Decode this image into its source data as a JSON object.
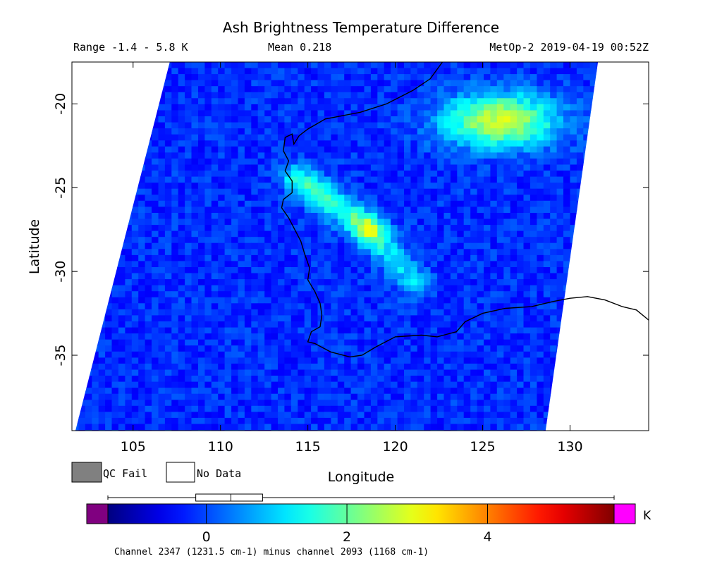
{
  "chart_data": {
    "type": "heatmap",
    "title": "Ash Brightness Temperature Difference",
    "range_text": "Range -1.4 - 5.8 K",
    "mean_text": "Mean 0.218",
    "satellite_text": "MetOp-2 2019-04-19 00:52Z",
    "xlabel": "Longitude",
    "ylabel": "Latitude",
    "xlim": [
      101.5,
      134.5
    ],
    "ylim": [
      -39.5,
      -17.5
    ],
    "x_ticks": [
      105,
      110,
      115,
      120,
      125,
      130
    ],
    "x_tick_labels": [
      "105",
      "110",
      "115",
      "120",
      "125",
      "130"
    ],
    "y_ticks": [
      -20,
      -25,
      -30,
      -35
    ],
    "y_tick_labels": [
      "-20",
      "-25",
      "-30",
      "-35"
    ],
    "legend": {
      "qc_fail_label": "QC Fail",
      "no_data_label": "No Data",
      "qc_fail_color": "#808080",
      "no_data_color": "#ffffff"
    },
    "colorbar": {
      "min": -1.4,
      "max": 5.8,
      "ticks": [
        0,
        2,
        4
      ],
      "tick_labels": [
        "0",
        "2",
        "4"
      ],
      "unit": "K",
      "under_color": "#800080",
      "over_color": "#ff00ff",
      "colormap": "jet",
      "caption": "Channel 2347 (1231.5 cm-1) minus channel 2093 (1168 cm-1)",
      "box_plot": {
        "whisker_low": -1.4,
        "q1": -0.15,
        "median": 0.35,
        "q3": 0.8,
        "whisker_high": 5.8
      }
    },
    "swath": {
      "top_left": [
        107.1,
        -17.5
      ],
      "bottom_left": [
        101.7,
        -39.5
      ],
      "top_right": [
        131.6,
        -17.5
      ],
      "bottom_right": [
        128.6,
        -39.5
      ]
    },
    "features": [
      {
        "name": "ash-plume-northeast",
        "center": [
          126.0,
          -21.0
        ],
        "peak_value": 3.0
      },
      {
        "name": "ash-band-west",
        "start": [
          114.5,
          -24.5
        ],
        "end": [
          118.5,
          -27.5
        ],
        "peak_value": 1.9
      },
      {
        "name": "ash-trail-south",
        "start": [
          118.5,
          -27.5
        ],
        "end": [
          121.0,
          -30.5
        ],
        "peak_value": 1.3
      }
    ],
    "coastline": [
      [
        122.7,
        -17.5
      ],
      [
        122.0,
        -18.5
      ],
      [
        121.0,
        -19.2
      ],
      [
        119.5,
        -20.0
      ],
      [
        118.0,
        -20.5
      ],
      [
        117.0,
        -20.7
      ],
      [
        116.0,
        -20.9
      ],
      [
        115.0,
        -21.5
      ],
      [
        114.5,
        -21.9
      ],
      [
        114.2,
        -22.4
      ],
      [
        114.1,
        -21.8
      ],
      [
        113.7,
        -22.0
      ],
      [
        113.6,
        -22.8
      ],
      [
        113.9,
        -23.4
      ],
      [
        113.7,
        -24.0
      ],
      [
        114.1,
        -24.6
      ],
      [
        114.1,
        -25.3
      ],
      [
        113.6,
        -25.7
      ],
      [
        113.5,
        -26.2
      ],
      [
        113.9,
        -26.8
      ],
      [
        114.2,
        -27.4
      ],
      [
        114.6,
        -28.2
      ],
      [
        114.8,
        -28.9
      ],
      [
        115.1,
        -29.8
      ],
      [
        115.0,
        -30.5
      ],
      [
        115.4,
        -31.2
      ],
      [
        115.7,
        -31.9
      ],
      [
        115.8,
        -32.6
      ],
      [
        115.7,
        -33.3
      ],
      [
        115.2,
        -33.6
      ],
      [
        115.0,
        -34.2
      ],
      [
        115.4,
        -34.3
      ],
      [
        116.3,
        -34.8
      ],
      [
        117.4,
        -35.1
      ],
      [
        118.1,
        -35.0
      ],
      [
        118.9,
        -34.5
      ],
      [
        120.0,
        -33.9
      ],
      [
        121.5,
        -33.8
      ],
      [
        122.4,
        -33.9
      ],
      [
        123.5,
        -33.6
      ],
      [
        124.0,
        -33.0
      ],
      [
        125.0,
        -32.5
      ],
      [
        126.3,
        -32.2
      ],
      [
        127.8,
        -32.1
      ],
      [
        129.0,
        -31.8
      ],
      [
        130.0,
        -31.6
      ],
      [
        131.0,
        -31.5
      ],
      [
        132.0,
        -31.7
      ],
      [
        133.0,
        -32.1
      ],
      [
        133.8,
        -32.3
      ],
      [
        134.5,
        -32.9
      ]
    ]
  }
}
